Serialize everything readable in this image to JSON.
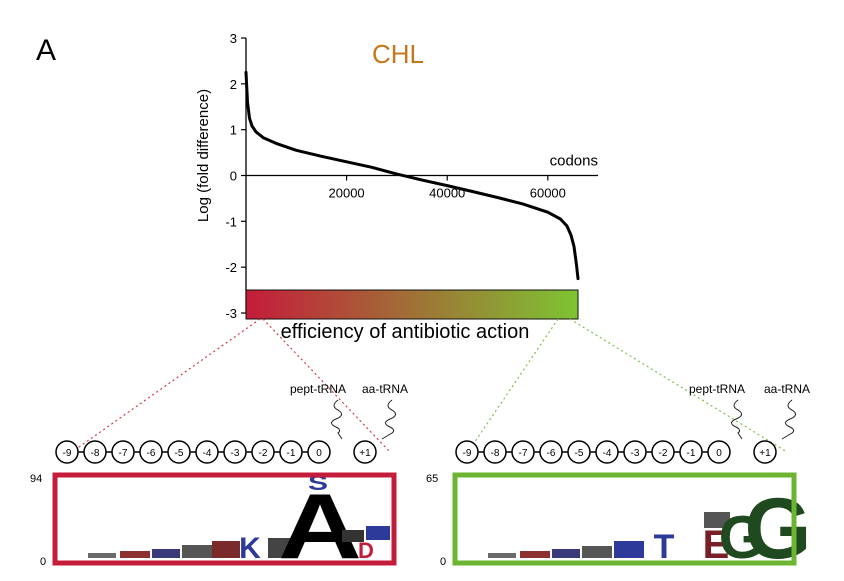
{
  "panel_label": "A",
  "colors": {
    "title": "#c8761c",
    "curve": "#000000",
    "band_start": "#c41c3a",
    "band_end": "#7ec433",
    "red_frame": "#c41c3a",
    "green_frame": "#6bb532",
    "red_guide": "#d23a4a",
    "green_guide": "#7cc04a"
  },
  "chart_data": {
    "type": "line",
    "title": "CHL",
    "ylabel": "Log (fold difference)",
    "xlabel": "codons",
    "xlim": [
      0,
      66000
    ],
    "ylim": [
      -3,
      3
    ],
    "xticks": [
      20000,
      40000,
      60000
    ],
    "xtick_labels": [
      "20000",
      "40000",
      "60000"
    ],
    "yticks": [
      3,
      2,
      1,
      0,
      -1,
      -2,
      -3
    ],
    "ytick_labels": [
      "3",
      "2",
      "1",
      "0",
      "-1",
      "-2",
      "-3"
    ],
    "series": [
      {
        "x": [
          0,
          300,
          700,
          1200,
          2000,
          3500,
          6000,
          10000,
          15000,
          20000,
          25000,
          30000,
          35000,
          40000,
          45000,
          50000,
          55000,
          60000,
          62500,
          63800,
          64600,
          65200,
          65700,
          66000
        ],
        "y": [
          2.25,
          1.6,
          1.25,
          1.08,
          0.95,
          0.82,
          0.7,
          0.55,
          0.42,
          0.3,
          0.18,
          0.03,
          -0.1,
          -0.22,
          -0.35,
          -0.48,
          -0.62,
          -0.8,
          -0.95,
          -1.1,
          -1.3,
          -1.55,
          -1.95,
          -2.25
        ]
      }
    ],
    "grid": false
  },
  "band": {
    "label": "efficiency of antibiotic action"
  },
  "positions": [
    "-9",
    "-8",
    "-7",
    "-6",
    "-5",
    "-4",
    "-3",
    "-2",
    "-1",
    "0",
    "+1"
  ],
  "trna": {
    "pept": "pept-tRNA",
    "aa": "aa-tRNA"
  },
  "left_logo": {
    "ymax": "94",
    "ymin": "0",
    "letters": [
      {
        "ch": "S",
        "color": "#2d3a9a"
      },
      {
        "ch": "A",
        "color": "#000000"
      },
      {
        "ch": "K",
        "color": "#2d3a9a"
      },
      {
        "ch": "D",
        "color": "#c41c3a"
      }
    ]
  },
  "right_logo": {
    "ymax": "65",
    "ymin": "0",
    "letters": [
      {
        "ch": "G",
        "color": "#1f4a1f"
      },
      {
        "ch": "G",
        "color": "#1f4a1f"
      },
      {
        "ch": "E",
        "color": "#7a1f28"
      },
      {
        "ch": "T",
        "color": "#2d3a9a"
      }
    ]
  }
}
